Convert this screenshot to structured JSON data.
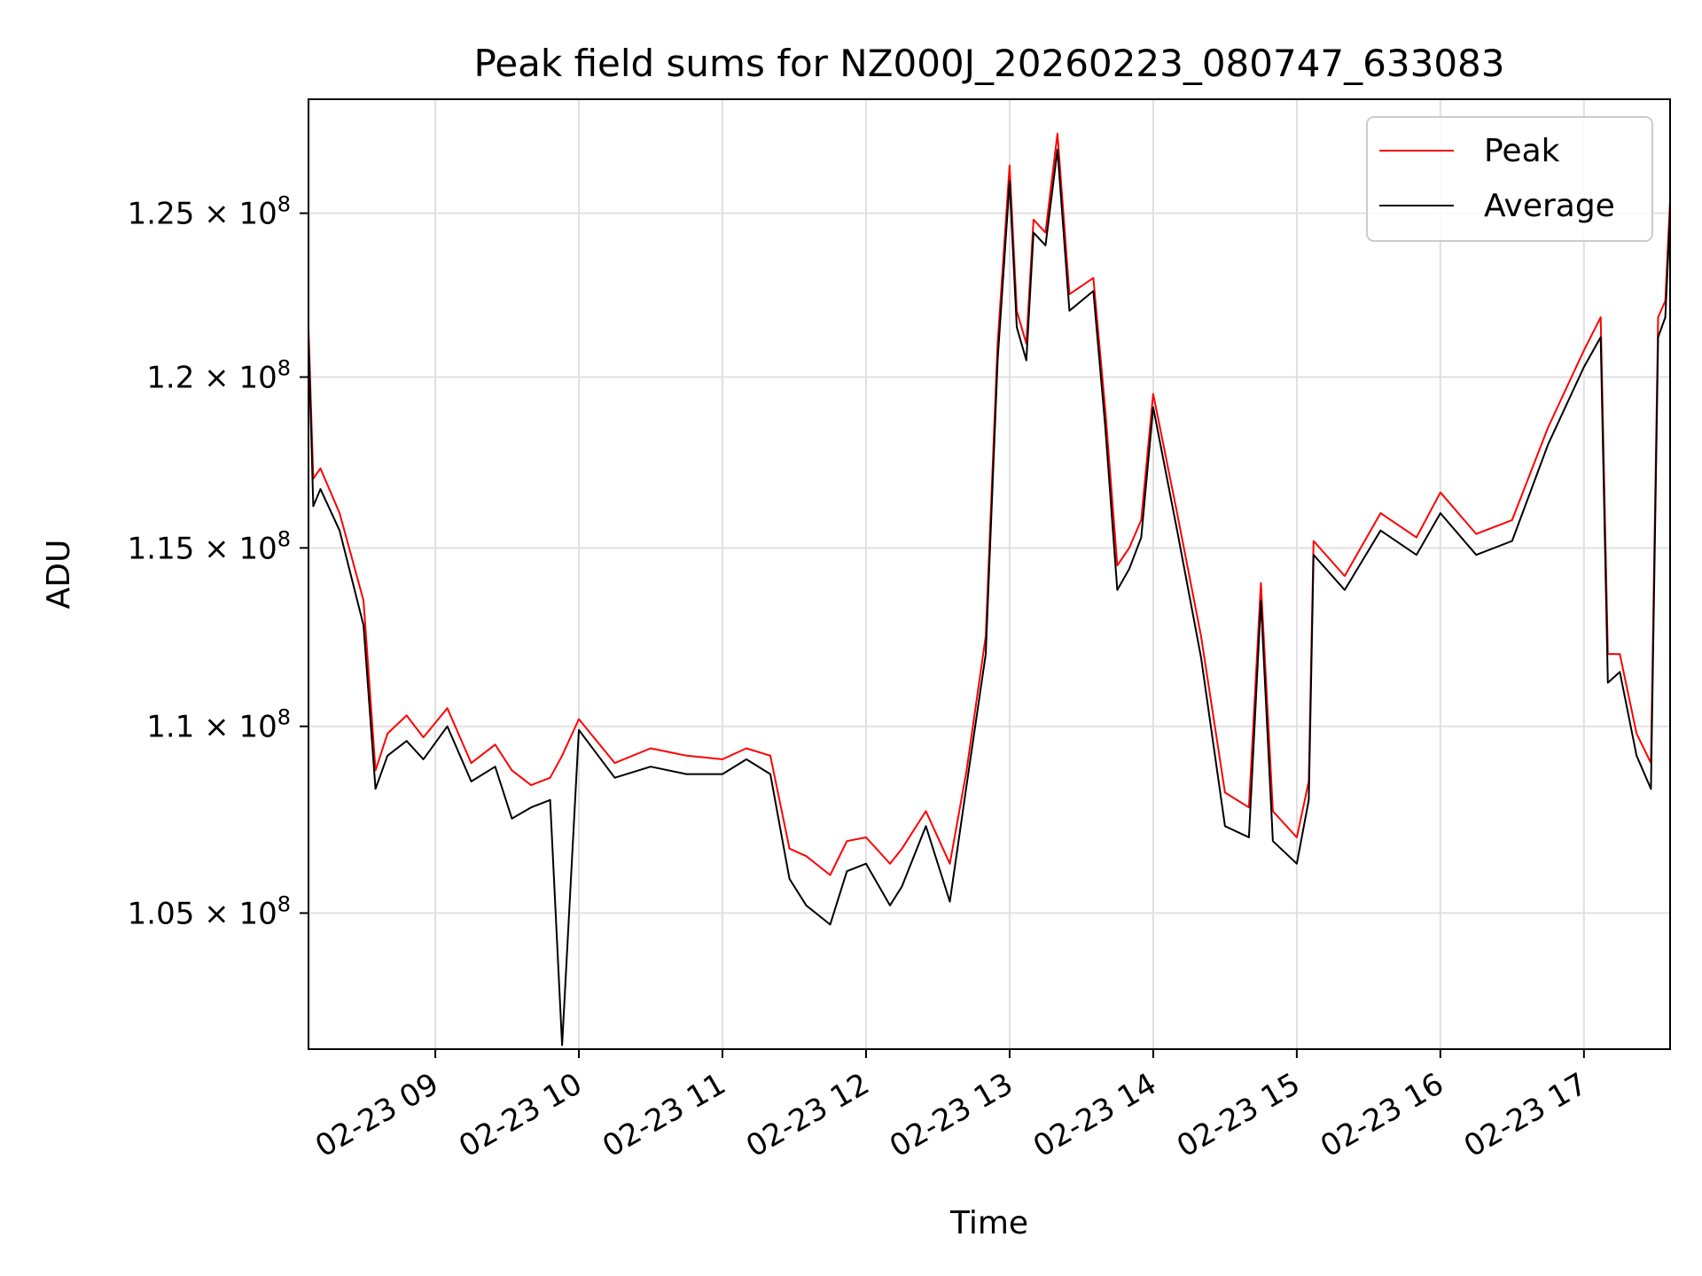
{
  "chart_data": {
    "type": "line",
    "title": "Peak field sums for NZ000J_20260223_080747_633083",
    "xlabel": "Time",
    "ylabel": "ADU",
    "y_scale": "log",
    "x_range": [
      "2026-02-23 08:07",
      "2026-02-23 17:36"
    ],
    "ylim": [
      101500000,
      128600000
    ],
    "grid": true,
    "legend_position": "top-right",
    "x_ticks": [
      {
        "t": "2026-02-23 09:00",
        "label": "02-23 09"
      },
      {
        "t": "2026-02-23 10:00",
        "label": "02-23 10"
      },
      {
        "t": "2026-02-23 11:00",
        "label": "02-23 11"
      },
      {
        "t": "2026-02-23 12:00",
        "label": "02-23 12"
      },
      {
        "t": "2026-02-23 13:00",
        "label": "02-23 13"
      },
      {
        "t": "2026-02-23 14:00",
        "label": "02-23 14"
      },
      {
        "t": "2026-02-23 15:00",
        "label": "02-23 15"
      },
      {
        "t": "2026-02-23 16:00",
        "label": "02-23 16"
      },
      {
        "t": "2026-02-23 17:00",
        "label": "02-23 17"
      }
    ],
    "y_ticks": [
      {
        "value": 105000000,
        "mant": "1.05",
        "exp": "8"
      },
      {
        "value": 110000000,
        "mant": "1.1",
        "exp": "8"
      },
      {
        "value": 115000000,
        "mant": "1.15",
        "exp": "8"
      },
      {
        "value": 120000000,
        "mant": "1.2",
        "exp": "8"
      },
      {
        "value": 125000000,
        "mant": "1.25",
        "exp": "8"
      }
    ],
    "series": [
      {
        "name": "Peak",
        "color": "#ff0000",
        "x": [
          "2026-02-23 08:07",
          "2026-02-23 08:09",
          "2026-02-23 08:12",
          "2026-02-23 08:20",
          "2026-02-23 08:30",
          "2026-02-23 08:35",
          "2026-02-23 08:40",
          "2026-02-23 08:48",
          "2026-02-23 08:55",
          "2026-02-23 09:05",
          "2026-02-23 09:15",
          "2026-02-23 09:25",
          "2026-02-23 09:32",
          "2026-02-23 09:40",
          "2026-02-23 09:48",
          "2026-02-23 09:53",
          "2026-02-23 10:00",
          "2026-02-23 10:15",
          "2026-02-23 10:30",
          "2026-02-23 10:45",
          "2026-02-23 11:00",
          "2026-02-23 11:10",
          "2026-02-23 11:20",
          "2026-02-23 11:28",
          "2026-02-23 11:35",
          "2026-02-23 11:45",
          "2026-02-23 11:52",
          "2026-02-23 12:00",
          "2026-02-23 12:10",
          "2026-02-23 12:15",
          "2026-02-23 12:25",
          "2026-02-23 12:35",
          "2026-02-23 12:42",
          "2026-02-23 12:50",
          "2026-02-23 12:55",
          "2026-02-23 13:00",
          "2026-02-23 13:03",
          "2026-02-23 13:07",
          "2026-02-23 13:10",
          "2026-02-23 13:15",
          "2026-02-23 13:20",
          "2026-02-23 13:25",
          "2026-02-23 13:35",
          "2026-02-23 13:40",
          "2026-02-23 13:45",
          "2026-02-23 13:50",
          "2026-02-23 13:55",
          "2026-02-23 14:00",
          "2026-02-23 14:10",
          "2026-02-23 14:20",
          "2026-02-23 14:30",
          "2026-02-23 14:40",
          "2026-02-23 14:45",
          "2026-02-23 14:50",
          "2026-02-23 15:00",
          "2026-02-23 15:05",
          "2026-02-23 15:07",
          "2026-02-23 15:20",
          "2026-02-23 15:35",
          "2026-02-23 15:50",
          "2026-02-23 16:00",
          "2026-02-23 16:15",
          "2026-02-23 16:30",
          "2026-02-23 16:45",
          "2026-02-23 17:00",
          "2026-02-23 17:07",
          "2026-02-23 17:10",
          "2026-02-23 17:15",
          "2026-02-23 17:22",
          "2026-02-23 17:28",
          "2026-02-23 17:31",
          "2026-02-23 17:34",
          "2026-02-23 17:36"
        ],
        "values": [
          121500000,
          117000000,
          117300000,
          116000000,
          113500000,
          108800000,
          109800000,
          110300000,
          109700000,
          110500000,
          109000000,
          109500000,
          108800000,
          108400000,
          108600000,
          109200000,
          110200000,
          109000000,
          109400000,
          109200000,
          109100000,
          109400000,
          109200000,
          106700000,
          106500000,
          106000000,
          106900000,
          107000000,
          106300000,
          106700000,
          107700000,
          106300000,
          108800000,
          112500000,
          121000000,
          126500000,
          122000000,
          121000000,
          124800000,
          124400000,
          127500000,
          122500000,
          123000000,
          119000000,
          114500000,
          115000000,
          115800000,
          119500000,
          116000000,
          112500000,
          108200000,
          107800000,
          114000000,
          107700000,
          107000000,
          108500000,
          115200000,
          114200000,
          116000000,
          115300000,
          116600000,
          115400000,
          115800000,
          118500000,
          120800000,
          121800000,
          112000000,
          112000000,
          109800000,
          109000000,
          121800000,
          122300000,
          125400000
        ]
      },
      {
        "name": "Average",
        "color": "#000000",
        "x": [
          "2026-02-23 08:07",
          "2026-02-23 08:09",
          "2026-02-23 08:12",
          "2026-02-23 08:20",
          "2026-02-23 08:30",
          "2026-02-23 08:35",
          "2026-02-23 08:40",
          "2026-02-23 08:48",
          "2026-02-23 08:55",
          "2026-02-23 09:05",
          "2026-02-23 09:15",
          "2026-02-23 09:25",
          "2026-02-23 09:32",
          "2026-02-23 09:40",
          "2026-02-23 09:48",
          "2026-02-23 09:53",
          "2026-02-23 10:00",
          "2026-02-23 10:15",
          "2026-02-23 10:30",
          "2026-02-23 10:45",
          "2026-02-23 11:00",
          "2026-02-23 11:10",
          "2026-02-23 11:20",
          "2026-02-23 11:28",
          "2026-02-23 11:35",
          "2026-02-23 11:45",
          "2026-02-23 11:52",
          "2026-02-23 12:00",
          "2026-02-23 12:10",
          "2026-02-23 12:15",
          "2026-02-23 12:25",
          "2026-02-23 12:35",
          "2026-02-23 12:42",
          "2026-02-23 12:50",
          "2026-02-23 12:55",
          "2026-02-23 13:00",
          "2026-02-23 13:03",
          "2026-02-23 13:07",
          "2026-02-23 13:10",
          "2026-02-23 13:15",
          "2026-02-23 13:20",
          "2026-02-23 13:25",
          "2026-02-23 13:35",
          "2026-02-23 13:40",
          "2026-02-23 13:45",
          "2026-02-23 13:50",
          "2026-02-23 13:55",
          "2026-02-23 14:00",
          "2026-02-23 14:10",
          "2026-02-23 14:20",
          "2026-02-23 14:30",
          "2026-02-23 14:40",
          "2026-02-23 14:45",
          "2026-02-23 14:50",
          "2026-02-23 15:00",
          "2026-02-23 15:05",
          "2026-02-23 15:07",
          "2026-02-23 15:20",
          "2026-02-23 15:35",
          "2026-02-23 15:50",
          "2026-02-23 16:00",
          "2026-02-23 16:15",
          "2026-02-23 16:30",
          "2026-02-23 16:45",
          "2026-02-23 17:00",
          "2026-02-23 17:07",
          "2026-02-23 17:10",
          "2026-02-23 17:15",
          "2026-02-23 17:22",
          "2026-02-23 17:28",
          "2026-02-23 17:31",
          "2026-02-23 17:34",
          "2026-02-23 17:36"
        ],
        "values": [
          121200000,
          116200000,
          116700000,
          115500000,
          112800000,
          108300000,
          109200000,
          109600000,
          109100000,
          110000000,
          108500000,
          108900000,
          107500000,
          107800000,
          108000000,
          101600000,
          109900000,
          108600000,
          108900000,
          108700000,
          108700000,
          109100000,
          108700000,
          105900000,
          105200000,
          104700000,
          106100000,
          106300000,
          105200000,
          105700000,
          107300000,
          105300000,
          108400000,
          112000000,
          120500000,
          126000000,
          121500000,
          120500000,
          124400000,
          124000000,
          127000000,
          122000000,
          122600000,
          118500000,
          113800000,
          114400000,
          115300000,
          119100000,
          115500000,
          111900000,
          107300000,
          107000000,
          113500000,
          106900000,
          106300000,
          108000000,
          114800000,
          113800000,
          115500000,
          114800000,
          116000000,
          114800000,
          115200000,
          118000000,
          120300000,
          121200000,
          111200000,
          111500000,
          109200000,
          108300000,
          121200000,
          121800000,
          125000000
        ]
      }
    ]
  }
}
